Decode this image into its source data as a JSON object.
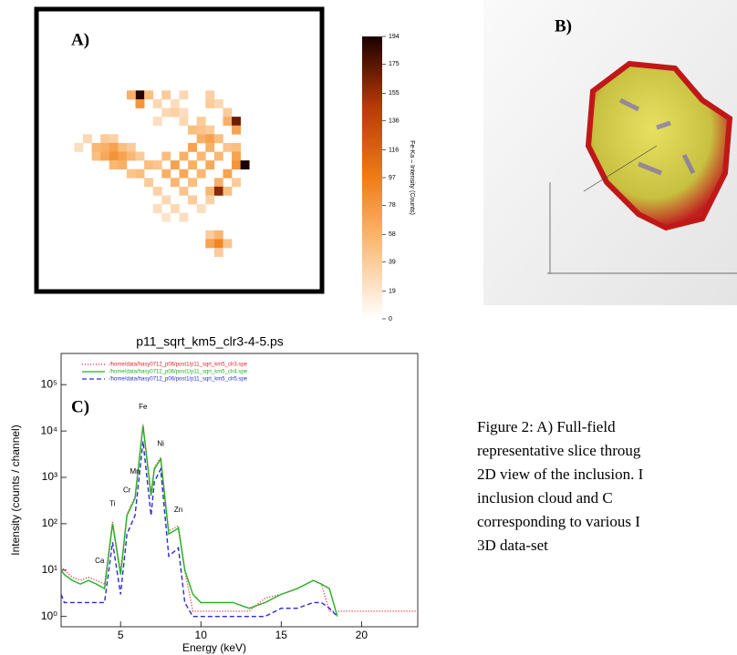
{
  "panel_a": {
    "label": "A)",
    "colorbar": {
      "label": "Fe-Ka – Intensity (Counts)",
      "ticks": [
        0,
        19,
        39,
        58,
        78,
        97,
        116,
        136,
        155,
        175,
        194
      ]
    },
    "cells": [
      [
        11,
        9,
        190
      ],
      [
        10,
        9,
        60
      ],
      [
        12,
        9,
        50
      ],
      [
        14,
        9,
        40
      ],
      [
        16,
        9,
        30
      ],
      [
        19,
        9,
        35
      ],
      [
        11,
        10,
        80
      ],
      [
        13,
        10,
        30
      ],
      [
        15,
        10,
        25
      ],
      [
        19,
        10,
        40
      ],
      [
        20,
        10,
        30
      ],
      [
        14,
        11,
        30
      ],
      [
        15,
        11,
        35
      ],
      [
        16,
        11,
        25
      ],
      [
        21,
        11,
        40
      ],
      [
        13,
        12,
        25
      ],
      [
        16,
        12,
        30
      ],
      [
        18,
        12,
        40
      ],
      [
        21,
        12,
        60
      ],
      [
        22,
        12,
        170
      ],
      [
        17,
        13,
        50
      ],
      [
        18,
        13,
        45
      ],
      [
        19,
        13,
        40
      ],
      [
        22,
        13,
        70
      ],
      [
        5,
        14,
        30
      ],
      [
        7,
        14,
        40
      ],
      [
        8,
        14,
        35
      ],
      [
        18,
        14,
        60
      ],
      [
        19,
        14,
        70
      ],
      [
        20,
        14,
        50
      ],
      [
        4,
        15,
        25
      ],
      [
        6,
        15,
        55
      ],
      [
        7,
        15,
        60
      ],
      [
        8,
        15,
        70
      ],
      [
        9,
        15,
        50
      ],
      [
        10,
        15,
        40
      ],
      [
        17,
        15,
        70
      ],
      [
        19,
        15,
        60
      ],
      [
        21,
        15,
        45
      ],
      [
        22,
        15,
        50
      ],
      [
        6,
        16,
        50
      ],
      [
        7,
        16,
        65
      ],
      [
        8,
        16,
        80
      ],
      [
        9,
        16,
        70
      ],
      [
        10,
        16,
        55
      ],
      [
        11,
        16,
        40
      ],
      [
        14,
        16,
        50
      ],
      [
        16,
        16,
        60
      ],
      [
        18,
        16,
        55
      ],
      [
        20,
        16,
        55
      ],
      [
        22,
        16,
        70
      ],
      [
        8,
        17,
        55
      ],
      [
        9,
        17,
        60
      ],
      [
        12,
        17,
        50
      ],
      [
        13,
        17,
        45
      ],
      [
        15,
        17,
        70
      ],
      [
        17,
        17,
        60
      ],
      [
        19,
        17,
        65
      ],
      [
        22,
        17,
        80
      ],
      [
        23,
        17,
        194
      ],
      [
        10,
        18,
        45
      ],
      [
        11,
        18,
        50
      ],
      [
        14,
        18,
        60
      ],
      [
        16,
        18,
        65
      ],
      [
        18,
        18,
        55
      ],
      [
        21,
        18,
        70
      ],
      [
        12,
        19,
        40
      ],
      [
        15,
        19,
        55
      ],
      [
        17,
        19,
        50
      ],
      [
        20,
        19,
        60
      ],
      [
        22,
        19,
        40
      ],
      [
        13,
        20,
        35
      ],
      [
        16,
        20,
        45
      ],
      [
        19,
        20,
        55
      ],
      [
        20,
        20,
        160
      ],
      [
        21,
        20,
        50
      ],
      [
        14,
        21,
        30
      ],
      [
        17,
        21,
        40
      ],
      [
        19,
        21,
        35
      ],
      [
        13,
        22,
        25
      ],
      [
        15,
        22,
        30
      ],
      [
        18,
        22,
        25
      ],
      [
        14,
        23,
        20
      ],
      [
        16,
        23,
        25
      ],
      [
        19,
        25,
        40
      ],
      [
        20,
        25,
        55
      ],
      [
        19,
        26,
        70
      ],
      [
        20,
        26,
        90
      ],
      [
        21,
        26,
        45
      ],
      [
        20,
        27,
        40
      ]
    ]
  },
  "panel_b": {
    "label": "B)"
  },
  "chart_data": {
    "type": "line",
    "panel_label": "C)",
    "title": "p11_sqrt_km5_clr3-4-5.ps",
    "xlabel": "Energy (keV)",
    "ylabel": "Intensity (counts / channel)",
    "x": [
      1.3,
      1.5,
      2,
      2.5,
      3,
      3.5,
      4,
      4.5,
      5,
      5.4,
      5.9,
      6.4,
      6.9,
      7.1,
      7.5,
      8,
      8.6,
      9,
      9.5,
      10,
      11,
      12,
      13,
      14,
      15,
      16,
      17,
      17.5,
      18,
      18.5,
      19,
      20,
      22,
      23.5
    ],
    "series": [
      {
        "name": "/home/data/hasy0712_p06/post1/p11_sqrt_km5_clr3.spe",
        "color": "#e8202a",
        "dash": "1,2",
        "values": [
          12,
          10,
          7,
          6,
          7,
          6,
          5,
          110,
          9,
          160,
          380,
          14000,
          450,
          1600,
          2700,
          70,
          90,
          10,
          1.3,
          1.3,
          1.3,
          1.3,
          1.3,
          2.5,
          3,
          4,
          6,
          5,
          1.3,
          1.3,
          1.3,
          1.3,
          1.3,
          1.3
        ]
      },
      {
        "name": "/home/data/hasy0712_p06/post1/p11_sqrt_km5_clr4.spe",
        "color": "#22b022",
        "dash": "none",
        "values": [
          10,
          8,
          6,
          5,
          6,
          5,
          4,
          100,
          8,
          150,
          350,
          13000,
          400,
          1500,
          2500,
          60,
          80,
          10,
          3,
          2,
          2,
          2,
          1.5,
          2,
          3,
          4,
          6,
          5,
          4,
          1,
          null,
          null,
          null,
          null
        ]
      },
      {
        "name": "/home/data/hasy0712_p06/post1/p11_sqrt_km5_clr5.spe",
        "color": "#2b2bd6",
        "dash": "5,3",
        "values": [
          3,
          2,
          2,
          2,
          2,
          2,
          2,
          40,
          3,
          60,
          150,
          6000,
          150,
          800,
          1500,
          20,
          30,
          2,
          1,
          1,
          1,
          1,
          1,
          1,
          1.5,
          1.5,
          2,
          2,
          1.5,
          1,
          null,
          null,
          null,
          null
        ]
      }
    ],
    "xlim": [
      1.3,
      23.5
    ],
    "ylim": [
      0.6,
      470000
    ],
    "log_y": true,
    "xticks": [
      5,
      10,
      15,
      20
    ],
    "yticks": [
      {
        "value": 1,
        "label": "10⁰"
      },
      {
        "value": 10,
        "label": "10¹"
      },
      {
        "value": 100,
        "label": "10²"
      },
      {
        "value": 1000,
        "label": "10³"
      },
      {
        "value": 10000,
        "label": "10⁴"
      },
      {
        "value": 100000,
        "label": "10⁵"
      }
    ],
    "annotations": [
      {
        "text": "Ca",
        "x": 3.7,
        "y": 12
      },
      {
        "text": "Ti",
        "x": 4.5,
        "y": 200
      },
      {
        "text": "Cr",
        "x": 5.4,
        "y": 400
      },
      {
        "text": "Mn",
        "x": 5.9,
        "y": 1000
      },
      {
        "text": "Fe",
        "x": 6.4,
        "y": 25000
      },
      {
        "text": "Ni",
        "x": 7.5,
        "y": 4000
      },
      {
        "text": "Zn",
        "x": 8.6,
        "y": 150
      }
    ]
  },
  "caption": {
    "lines": [
      "Figure 2: A) Full-field",
      "representative slice throug",
      "2D view of the inclusion. I",
      "inclusion cloud and C",
      "corresponding to various I",
      "3D data-set"
    ]
  }
}
